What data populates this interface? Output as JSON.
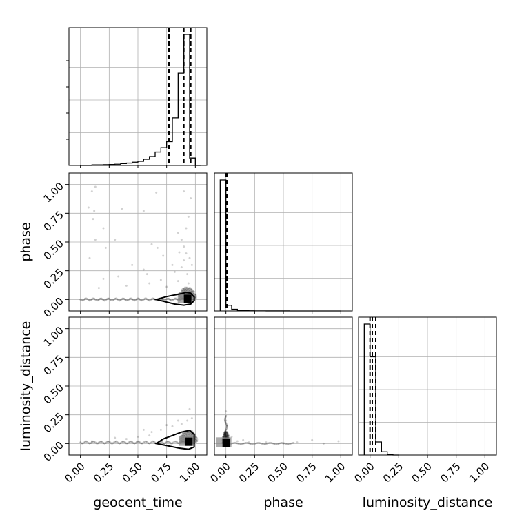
{
  "chart_data": {
    "type": "corner",
    "parameters": [
      "geocent_time",
      "phase",
      "luminosity_distance"
    ],
    "axis_range": [
      -0.1,
      1.1
    ],
    "ticks": [
      0.0,
      0.25,
      0.5,
      0.75,
      1.0
    ],
    "tick_labels": [
      "0.00",
      "0.25",
      "0.50",
      "0.75",
      "1.00"
    ],
    "xlabels": [
      "geocent_time",
      "phase",
      "luminosity_distance"
    ],
    "ylabels": [
      "",
      "phase",
      "luminosity_distance"
    ],
    "grid": true,
    "colors": {
      "line": "#000000",
      "grid": "#b0b0b0",
      "points": "#000000",
      "background": "#ffffff"
    },
    "histograms": [
      {
        "parameter": "geocent_time",
        "bin_edges": [
          0.0,
          0.05,
          0.1,
          0.15,
          0.2,
          0.25,
          0.3,
          0.35,
          0.4,
          0.45,
          0.5,
          0.55,
          0.6,
          0.65,
          0.7,
          0.75,
          0.8,
          0.85,
          0.9,
          0.95,
          1.0,
          1.05
        ],
        "counts": [
          0,
          0,
          0.4,
          0.4,
          0.5,
          0.6,
          0.8,
          1.2,
          1.6,
          2.2,
          2.8,
          4.2,
          6,
          9,
          12,
          16,
          32,
          62,
          88,
          5,
          0
        ],
        "quantiles": [
          0.77,
          0.9,
          0.96
        ]
      },
      {
        "parameter": "phase",
        "bin_edges": [
          -0.05,
          0.0,
          0.05,
          0.1,
          0.15,
          0.2,
          0.25,
          0.3,
          0.35,
          0.4,
          0.45,
          0.5,
          0.55,
          0.6,
          0.65,
          0.7,
          0.75,
          0.8,
          0.85,
          0.9,
          0.95,
          1.0
        ],
        "counts": [
          92,
          4,
          1.2,
          0.5,
          0.2,
          0.1,
          0.05,
          0.05,
          0.02,
          0.02,
          0.02,
          0.02,
          0.01,
          0.01,
          0.01,
          0.01,
          0.01,
          0.01,
          0.01,
          0.01,
          0.01
        ],
        "quantiles": [
          0.0,
          0.005,
          0.01
        ]
      },
      {
        "parameter": "luminosity_distance",
        "bin_edges": [
          -0.05,
          0.0,
          0.05,
          0.1,
          0.15,
          0.2,
          0.25
        ],
        "counts": [
          80,
          60,
          8,
          2,
          0.3,
          0
        ],
        "quantiles": [
          0.0,
          0.02,
          0.05
        ]
      }
    ],
    "scatter_panels": [
      {
        "x": "geocent_time",
        "y": "phase",
        "core": [
          0.93,
          0.0
        ],
        "contour": [
          [
            0.66,
            0.0
          ],
          [
            0.75,
            0.025
          ],
          [
            0.85,
            0.045
          ],
          [
            0.92,
            0.06
          ],
          [
            0.96,
            0.055
          ],
          [
            0.99,
            0.02
          ],
          [
            0.99,
            -0.01
          ],
          [
            0.96,
            -0.04
          ],
          [
            0.9,
            -0.05
          ],
          [
            0.82,
            -0.04
          ],
          [
            0.74,
            -0.02
          ],
          [
            0.66,
            0.0
          ]
        ],
        "outliers": [
          [
            0.1,
            0.94
          ],
          [
            0.13,
            0.98
          ],
          [
            0.07,
            0.8
          ],
          [
            0.12,
            0.77
          ],
          [
            0.2,
            0.62
          ],
          [
            0.11,
            0.7
          ],
          [
            0.36,
            0.79
          ],
          [
            0.55,
            0.77
          ],
          [
            0.66,
            0.93
          ],
          [
            0.9,
            0.94
          ],
          [
            0.96,
            0.88
          ],
          [
            0.13,
            0.52
          ],
          [
            0.22,
            0.45
          ],
          [
            0.08,
            0.36
          ],
          [
            0.3,
            0.52
          ],
          [
            0.62,
            0.48
          ],
          [
            0.67,
            0.45
          ],
          [
            0.72,
            0.38
          ],
          [
            0.85,
            0.58
          ],
          [
            0.88,
            0.52
          ],
          [
            0.9,
            0.46
          ],
          [
            0.92,
            0.62
          ],
          [
            0.94,
            0.72
          ],
          [
            0.86,
            0.41
          ],
          [
            0.92,
            0.4
          ],
          [
            0.8,
            0.3
          ],
          [
            0.9,
            0.34
          ],
          [
            0.95,
            0.36
          ],
          [
            0.45,
            0.3
          ],
          [
            0.55,
            0.26
          ],
          [
            0.2,
            0.18
          ],
          [
            0.33,
            0.2
          ],
          [
            0.58,
            0.22
          ],
          [
            0.7,
            0.17
          ],
          [
            0.82,
            0.24
          ],
          [
            0.88,
            0.28
          ],
          [
            0.93,
            0.22
          ],
          [
            0.97,
            0.3
          ],
          [
            0.16,
            0.1
          ],
          [
            0.4,
            0.12
          ],
          [
            0.6,
            0.14
          ],
          [
            0.75,
            0.11
          ],
          [
            0.85,
            0.16
          ],
          [
            0.94,
            0.14
          ]
        ]
      },
      {
        "x": "geocent_time",
        "y": "luminosity_distance",
        "core": [
          0.94,
          0.01
        ],
        "contour": [
          [
            0.66,
            0.0
          ],
          [
            0.72,
            0.04
          ],
          [
            0.8,
            0.07
          ],
          [
            0.88,
            0.1
          ],
          [
            0.95,
            0.115
          ],
          [
            0.99,
            0.08
          ],
          [
            0.99,
            -0.03
          ],
          [
            0.94,
            -0.05
          ],
          [
            0.86,
            -0.04
          ],
          [
            0.76,
            -0.02
          ],
          [
            0.66,
            0.0
          ]
        ],
        "outliers": [
          [
            0.1,
            0.02
          ],
          [
            0.3,
            0.05
          ],
          [
            0.5,
            0.06
          ],
          [
            0.62,
            0.1
          ],
          [
            0.7,
            0.12
          ],
          [
            0.8,
            0.15
          ],
          [
            0.88,
            0.17
          ],
          [
            0.93,
            0.2
          ],
          [
            0.97,
            0.22
          ],
          [
            0.95,
            0.3
          ],
          [
            0.55,
            0.12
          ],
          [
            0.75,
            0.16
          ],
          [
            0.85,
            0.2
          ],
          [
            0.6,
            0.07
          ],
          [
            0.4,
            0.04
          ]
        ]
      },
      {
        "x": "phase",
        "y": "luminosity_distance",
        "core": [
          0.0,
          0.0
        ],
        "contour": [],
        "outliers": [
          [
            0.0,
            0.28
          ],
          [
            0.0,
            0.2
          ],
          [
            0.01,
            0.15
          ],
          [
            0.1,
            0.02
          ],
          [
            0.2,
            0.01
          ],
          [
            0.35,
            0.01
          ],
          [
            0.5,
            0.0
          ],
          [
            0.75,
            0.03
          ],
          [
            0.98,
            0.02
          ],
          [
            0.05,
            0.06
          ],
          [
            0.15,
            0.03
          ],
          [
            0.62,
            0.01
          ],
          [
            0.85,
            0.0
          ]
        ]
      }
    ]
  }
}
